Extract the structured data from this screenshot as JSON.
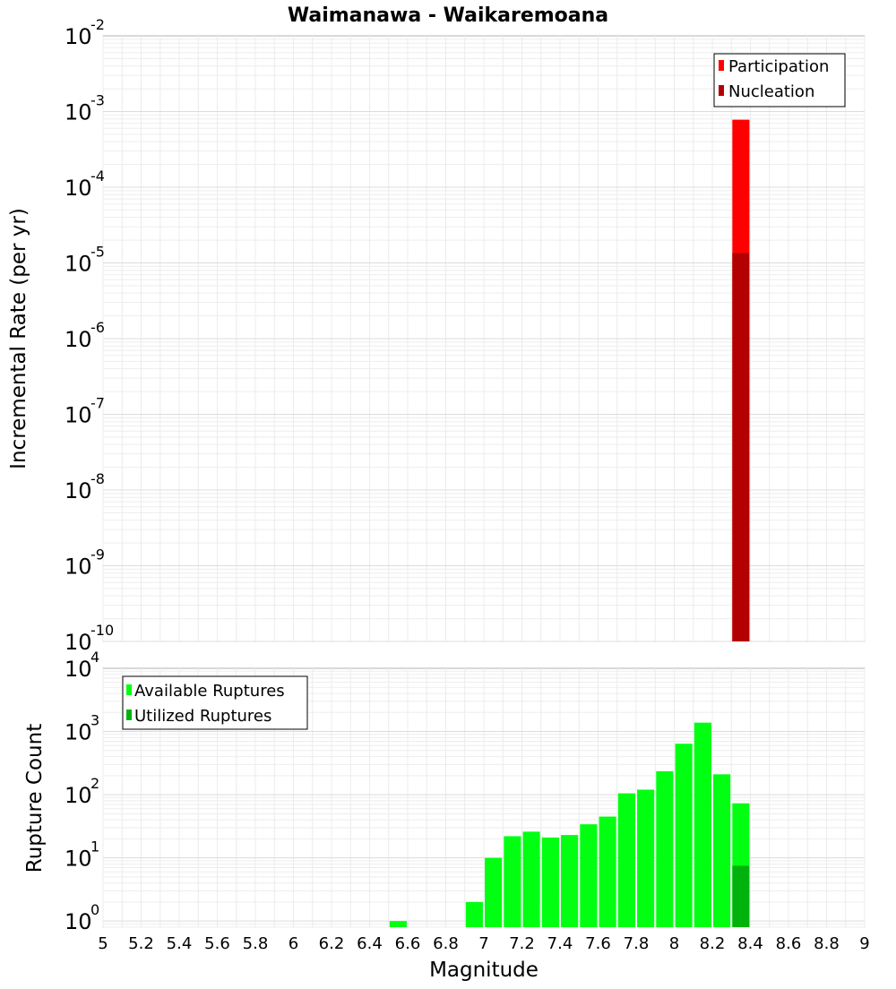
{
  "chart_data": [
    {
      "type": "bar",
      "title": "Waimanawa - Waikaremoana",
      "xlabel": "",
      "ylabel": "Incremental Rate (per yr)",
      "y_scale": "log",
      "xlim": [
        5,
        9
      ],
      "ylim": [
        1e-10,
        0.01
      ],
      "y_ticks": [
        {
          "base": "10",
          "exp": "-10",
          "value": 1e-10
        },
        {
          "base": "10",
          "exp": "-9",
          "value": 1e-09
        },
        {
          "base": "10",
          "exp": "-8",
          "value": 1e-08
        },
        {
          "base": "10",
          "exp": "-7",
          "value": 1e-07
        },
        {
          "base": "10",
          "exp": "-6",
          "value": 1e-06
        },
        {
          "base": "10",
          "exp": "-5",
          "value": 1e-05
        },
        {
          "base": "10",
          "exp": "-4",
          "value": 0.0001
        },
        {
          "base": "10",
          "exp": "-3",
          "value": 0.001
        },
        {
          "base": "10",
          "exp": "-2",
          "value": 0.01
        }
      ],
      "grid": true,
      "legend_position": "top-right",
      "series": [
        {
          "name": "Participation",
          "color": "#ff0000",
          "points": [
            {
              "x": 8.35,
              "y": 0.00078
            }
          ]
        },
        {
          "name": "Nucleation",
          "color": "#b30000",
          "points": [
            {
              "x": 8.35,
              "y": 1.35e-05
            }
          ]
        }
      ]
    },
    {
      "type": "bar",
      "title": "",
      "xlabel": "Magnitude",
      "ylabel": "Rupture Count",
      "y_scale": "log",
      "xlim": [
        5,
        9
      ],
      "ylim": [
        0.8,
        10000
      ],
      "x_tick_labels": [
        "5",
        "5.2",
        "5.4",
        "5.6",
        "5.8",
        "6",
        "6.2",
        "6.4",
        "6.6",
        "6.8",
        "7",
        "7.2",
        "7.4",
        "7.6",
        "7.8",
        "8",
        "8.2",
        "8.4",
        "8.6",
        "8.8",
        "9"
      ],
      "y_ticks": [
        {
          "base": "10",
          "exp": "0",
          "value": 1
        },
        {
          "base": "10",
          "exp": "1",
          "value": 10
        },
        {
          "base": "10",
          "exp": "2",
          "value": 100
        },
        {
          "base": "10",
          "exp": "3",
          "value": 1000
        },
        {
          "base": "10",
          "exp": "4",
          "value": 10000
        }
      ],
      "grid": true,
      "legend_position": "top-left",
      "series": [
        {
          "name": "Available Ruptures",
          "color": "#00ff11",
          "points": [
            {
              "x": 6.55,
              "y": 1
            },
            {
              "x": 6.95,
              "y": 2
            },
            {
              "x": 7.05,
              "y": 10
            },
            {
              "x": 7.15,
              "y": 22
            },
            {
              "x": 7.25,
              "y": 26
            },
            {
              "x": 7.35,
              "y": 21
            },
            {
              "x": 7.45,
              "y": 23
            },
            {
              "x": 7.55,
              "y": 34
            },
            {
              "x": 7.65,
              "y": 45
            },
            {
              "x": 7.75,
              "y": 105
            },
            {
              "x": 7.85,
              "y": 120
            },
            {
              "x": 7.95,
              "y": 235
            },
            {
              "x": 8.05,
              "y": 640
            },
            {
              "x": 8.15,
              "y": 1380
            },
            {
              "x": 8.25,
              "y": 210
            },
            {
              "x": 8.35,
              "y": 73
            }
          ]
        },
        {
          "name": "Utilized Ruptures",
          "color": "#00b30c",
          "points": [
            {
              "x": 8.35,
              "y": 7.5
            }
          ]
        }
      ]
    }
  ]
}
